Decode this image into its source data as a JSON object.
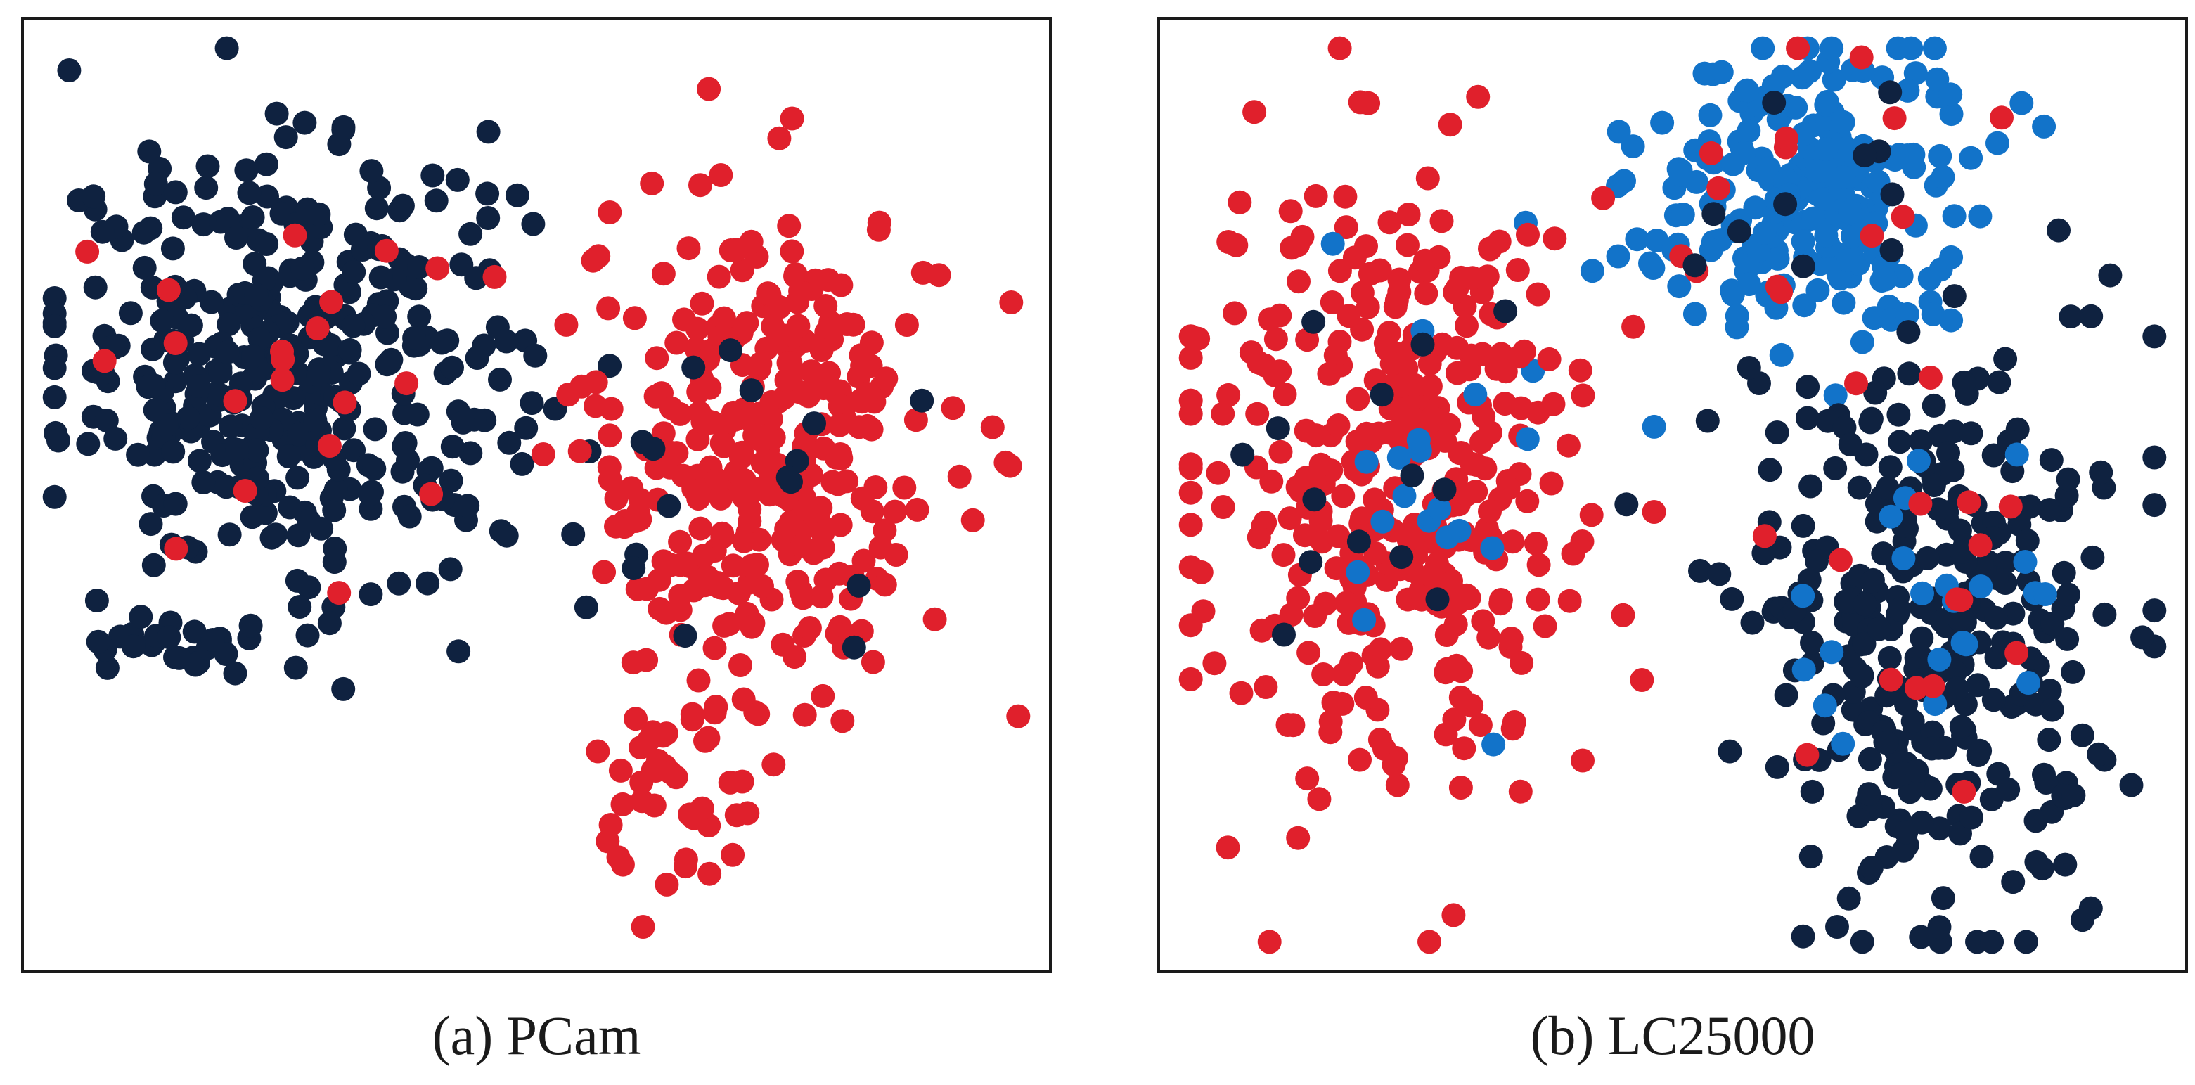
{
  "colors": {
    "navy": "#0f2240",
    "red": "#e0202c",
    "blue": "#1273c9"
  },
  "chart_data": [
    {
      "type": "scatter",
      "title": "(a) PCam",
      "xlim": [
        0,
        100
      ],
      "ylim": [
        0,
        100
      ],
      "grid": false,
      "ticks": false,
      "legend": "none",
      "description_free_note": "",
      "clusters": [
        {
          "color": "navy",
          "center": [
            26,
            64
          ],
          "spread": [
            15,
            15
          ],
          "count": 380
        },
        {
          "color": "red",
          "center": [
            72,
            55
          ],
          "spread": [
            12,
            18
          ],
          "count": 320
        },
        {
          "color": "red",
          "center": [
            64,
            18
          ],
          "spread": [
            5,
            9
          ],
          "count": 45
        },
        {
          "color": "navy",
          "center": [
            15,
            34
          ],
          "spread": [
            6,
            3
          ],
          "count": 28
        },
        {
          "color": "red",
          "center": [
            24,
            58
          ],
          "spread": [
            14,
            14
          ],
          "count": 20
        },
        {
          "color": "navy",
          "center": [
            72,
            52
          ],
          "spread": [
            11,
            15
          ],
          "count": 16
        }
      ]
    },
    {
      "type": "scatter",
      "title": "(b) LC25000",
      "xlim": [
        0,
        100
      ],
      "ylim": [
        0,
        100
      ],
      "grid": false,
      "ticks": false,
      "legend": "none",
      "clusters": [
        {
          "color": "blue",
          "center": [
            63,
            82
          ],
          "spread": [
            11,
            11
          ],
          "count": 230
        },
        {
          "color": "red",
          "center": [
            22,
            52
          ],
          "spread": [
            13,
            21
          ],
          "count": 360
        },
        {
          "color": "navy",
          "center": [
            75,
            35
          ],
          "spread": [
            12,
            20
          ],
          "count": 340
        },
        {
          "color": "blue",
          "center": [
            26,
            50
          ],
          "spread": [
            9,
            13
          ],
          "count": 18
        },
        {
          "color": "blue",
          "center": [
            76,
            40
          ],
          "spread": [
            9,
            12
          ],
          "count": 22
        },
        {
          "color": "red",
          "center": [
            63,
            82
          ],
          "spread": [
            11,
            11
          ],
          "count": 14
        },
        {
          "color": "navy",
          "center": [
            63,
            82
          ],
          "spread": [
            11,
            11
          ],
          "count": 10
        },
        {
          "color": "red",
          "center": [
            74,
            38
          ],
          "spread": [
            12,
            16
          ],
          "count": 16
        },
        {
          "color": "navy",
          "center": [
            22,
            50
          ],
          "spread": [
            12,
            18
          ],
          "count": 14
        }
      ]
    }
  ]
}
